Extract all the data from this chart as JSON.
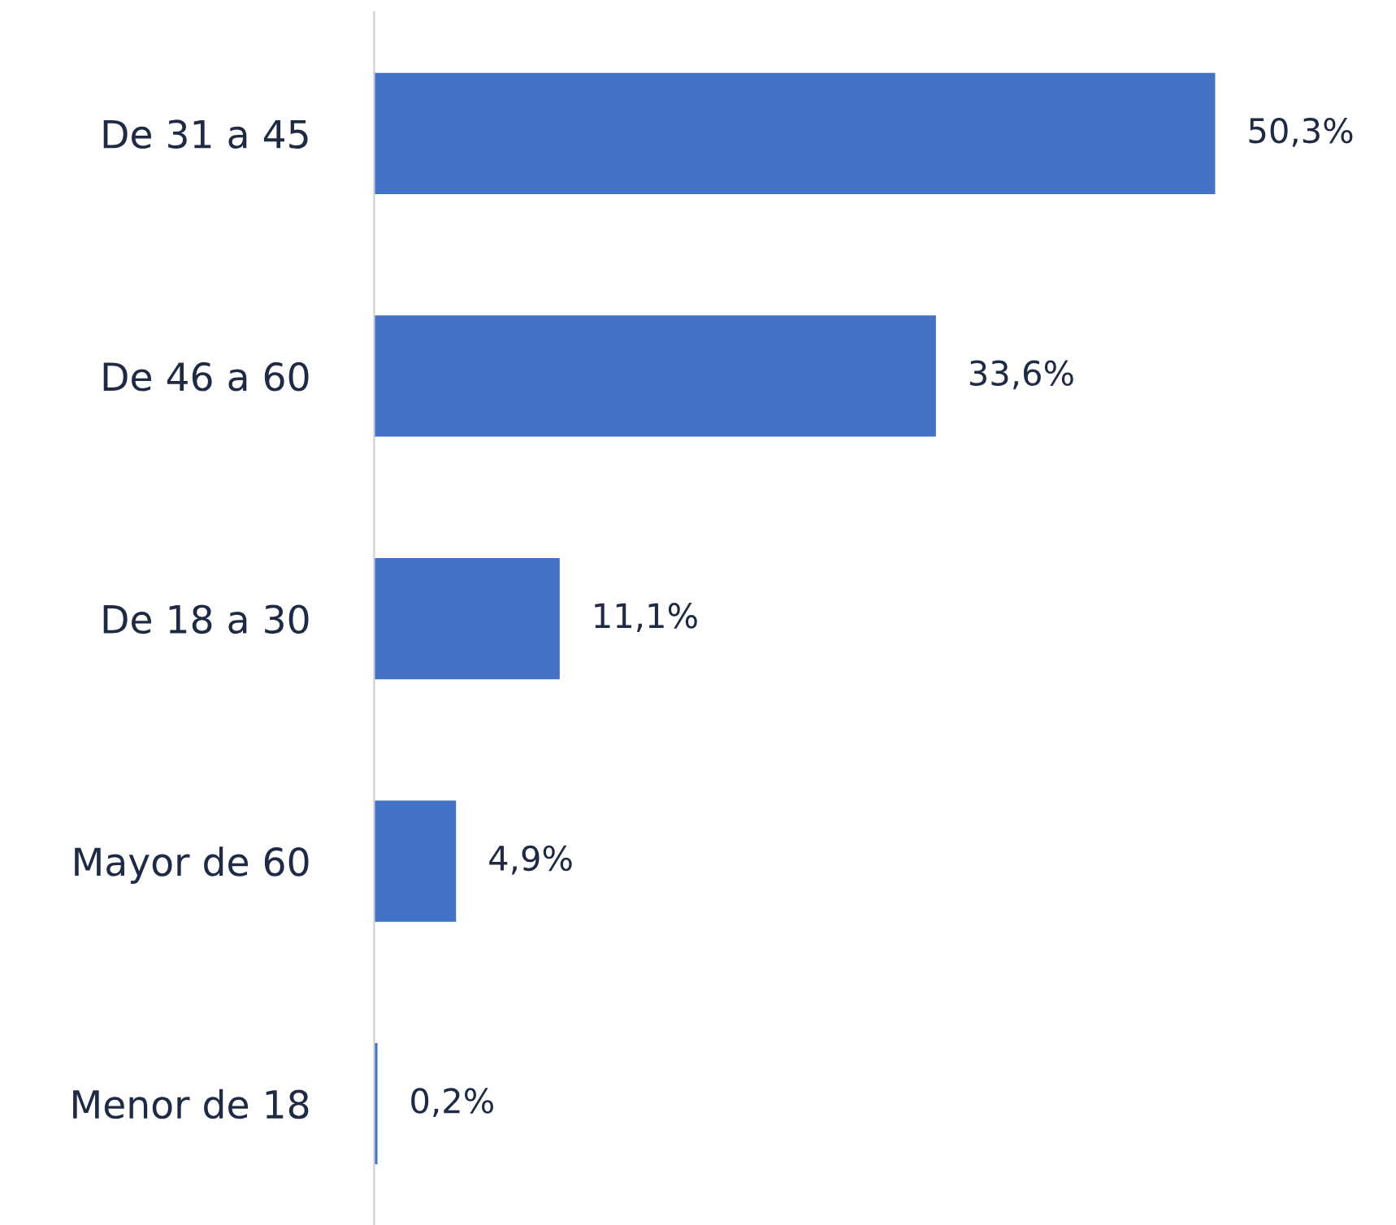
{
  "chart_data": {
    "type": "bar",
    "orientation": "horizontal",
    "categories": [
      "De 31 a 45",
      "De 46 a 60",
      "De 18 a 30",
      "Mayor de 60",
      "Menor de 18"
    ],
    "values": [
      50.3,
      33.6,
      11.1,
      4.9,
      0.2
    ],
    "value_labels": [
      "50,3%",
      "33,6%",
      "11,1%",
      "4,9%",
      "0,2%"
    ],
    "color": "#4472c4",
    "tick_labels": "y",
    "grid": false,
    "legend": false
  }
}
